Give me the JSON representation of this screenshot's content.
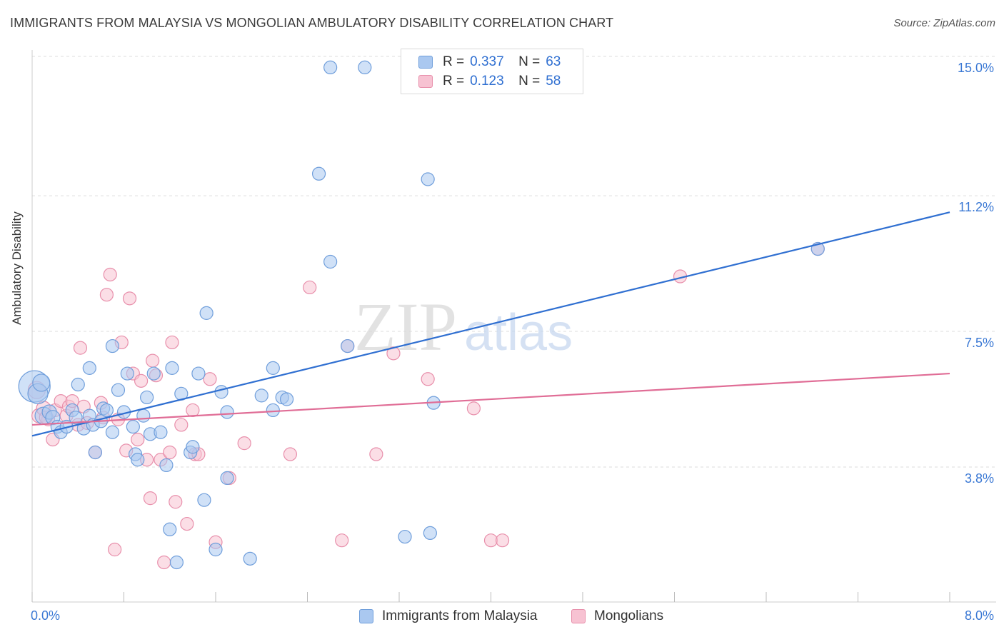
{
  "title": "IMMIGRANTS FROM MALAYSIA VS MONGOLIAN AMBULATORY DISABILITY CORRELATION CHART",
  "source": "Source: ZipAtlas.com",
  "watermark": {
    "part1": "ZIP",
    "part2": "atlas"
  },
  "legend_top": {
    "rows": [
      {
        "r_label": "R =",
        "r_value": "0.337",
        "n_label": "N =",
        "n_value": "63"
      },
      {
        "r_label": "R =",
        "r_value": "0.123",
        "n_label": "N =",
        "n_value": "58"
      }
    ]
  },
  "legend_bottom": {
    "items": [
      "Immigrants from Malaysia",
      "Mongolians"
    ]
  },
  "colors": {
    "blue_fill": "#aac8f0",
    "blue_stroke": "#6f9edb",
    "blue_line": "#2f6fd1",
    "pink_fill": "#f7c2d2",
    "pink_stroke": "#e88fab",
    "pink_line": "#e06d96",
    "tick_text": "#3a78d4",
    "grid": "#dddddd"
  },
  "chart_data": {
    "type": "scatter",
    "title": "IMMIGRANTS FROM MALAYSIA VS MONGOLIAN AMBULATORY DISABILITY CORRELATION CHART",
    "xlabel": "",
    "ylabel": "Ambulatory Disability",
    "xlim": [
      0,
      8.0
    ],
    "ylim": [
      0,
      15.5
    ],
    "x_tick_labels": [
      "0.0%",
      "8.0%"
    ],
    "x_tick_values": [
      0,
      8.0
    ],
    "y_tick_labels": [
      "3.8%",
      "7.5%",
      "11.2%",
      "15.0%"
    ],
    "y_tick_values": [
      3.8,
      7.5,
      11.2,
      15.0
    ],
    "series": [
      {
        "name": "Immigrants from Malaysia",
        "color": "blue",
        "R": 0.337,
        "N": 63,
        "trend": {
          "x": [
            0,
            8.0
          ],
          "y": [
            4.65,
            10.75
          ]
        },
        "points": [
          [
            0.02,
            6.0,
            22
          ],
          [
            0.05,
            5.8,
            14
          ],
          [
            0.08,
            6.1,
            12
          ],
          [
            0.1,
            5.2,
            12
          ],
          [
            0.15,
            5.3,
            10
          ],
          [
            0.18,
            5.15,
            10
          ],
          [
            0.22,
            4.9,
            9
          ],
          [
            0.25,
            4.75,
            9
          ],
          [
            0.3,
            4.9,
            9
          ],
          [
            0.35,
            5.35,
            9
          ],
          [
            0.38,
            5.15,
            9
          ],
          [
            0.4,
            6.05,
            9
          ],
          [
            0.45,
            4.85,
            9
          ],
          [
            0.5,
            5.2,
            9
          ],
          [
            0.5,
            6.5,
            9
          ],
          [
            0.53,
            4.95,
            9
          ],
          [
            0.55,
            4.2,
            9
          ],
          [
            0.6,
            5.05,
            9
          ],
          [
            0.62,
            5.4,
            9
          ],
          [
            0.65,
            5.35,
            9
          ],
          [
            0.7,
            4.75,
            9
          ],
          [
            0.7,
            7.1,
            9
          ],
          [
            0.75,
            5.9,
            9
          ],
          [
            0.8,
            5.3,
            9
          ],
          [
            0.83,
            6.35,
            9
          ],
          [
            0.88,
            4.9,
            9
          ],
          [
            0.9,
            4.15,
            9
          ],
          [
            0.92,
            4.0,
            9
          ],
          [
            0.97,
            5.2,
            9
          ],
          [
            1.0,
            5.7,
            9
          ],
          [
            1.03,
            4.7,
            9
          ],
          [
            1.06,
            6.35,
            9
          ],
          [
            1.12,
            4.75,
            9
          ],
          [
            1.17,
            3.85,
            9
          ],
          [
            1.2,
            2.1,
            9
          ],
          [
            1.22,
            6.5,
            9
          ],
          [
            1.26,
            1.2,
            9
          ],
          [
            1.3,
            5.8,
            9
          ],
          [
            1.38,
            4.2,
            9
          ],
          [
            1.4,
            4.35,
            9
          ],
          [
            1.45,
            6.35,
            9
          ],
          [
            1.5,
            2.9,
            9
          ],
          [
            1.52,
            8.0,
            9
          ],
          [
            1.6,
            1.55,
            9
          ],
          [
            1.65,
            5.85,
            9
          ],
          [
            1.7,
            5.3,
            9
          ],
          [
            1.7,
            3.5,
            9
          ],
          [
            1.9,
            1.3,
            9
          ],
          [
            2.0,
            5.75,
            9
          ],
          [
            2.1,
            6.5,
            9
          ],
          [
            2.1,
            5.35,
            9
          ],
          [
            2.18,
            5.7,
            9
          ],
          [
            2.22,
            5.65,
            9
          ],
          [
            2.5,
            11.8,
            9
          ],
          [
            2.6,
            14.7,
            9
          ],
          [
            2.6,
            9.4,
            9
          ],
          [
            2.75,
            7.1,
            9
          ],
          [
            2.9,
            14.7,
            9
          ],
          [
            3.25,
            1.9,
            9
          ],
          [
            3.45,
            11.65,
            9
          ],
          [
            3.47,
            2.0,
            9
          ],
          [
            3.5,
            5.55,
            9
          ],
          [
            6.85,
            9.75,
            9
          ]
        ]
      },
      {
        "name": "Mongolians",
        "color": "pink",
        "R": 0.123,
        "N": 58,
        "trend": {
          "x": [
            0,
            8.0
          ],
          "y": [
            4.95,
            6.35
          ]
        },
        "points": [
          [
            0.04,
            5.9,
            12
          ],
          [
            0.06,
            5.2,
            10
          ],
          [
            0.1,
            5.4,
            10
          ],
          [
            0.14,
            5.1,
            9
          ],
          [
            0.18,
            4.55,
            9
          ],
          [
            0.2,
            5.35,
            9
          ],
          [
            0.25,
            5.6,
            9
          ],
          [
            0.3,
            5.2,
            9
          ],
          [
            0.32,
            5.45,
            9
          ],
          [
            0.35,
            5.6,
            9
          ],
          [
            0.4,
            4.95,
            9
          ],
          [
            0.42,
            7.05,
            9
          ],
          [
            0.45,
            5.45,
            9
          ],
          [
            0.48,
            5.0,
            9
          ],
          [
            0.55,
            4.2,
            9
          ],
          [
            0.6,
            5.55,
            9
          ],
          [
            0.62,
            5.15,
            9
          ],
          [
            0.65,
            8.5,
            9
          ],
          [
            0.68,
            9.05,
            9
          ],
          [
            0.72,
            1.55,
            9
          ],
          [
            0.75,
            5.1,
            9
          ],
          [
            0.78,
            7.2,
            9
          ],
          [
            0.82,
            4.25,
            9
          ],
          [
            0.85,
            8.4,
            9
          ],
          [
            0.88,
            6.35,
            9
          ],
          [
            0.92,
            4.55,
            9
          ],
          [
            0.95,
            6.15,
            9
          ],
          [
            1.0,
            4.0,
            9
          ],
          [
            1.03,
            2.95,
            9
          ],
          [
            1.05,
            6.7,
            9
          ],
          [
            1.08,
            6.3,
            9
          ],
          [
            1.12,
            4.0,
            9
          ],
          [
            1.15,
            1.2,
            9
          ],
          [
            1.2,
            4.2,
            9
          ],
          [
            1.22,
            7.2,
            9
          ],
          [
            1.25,
            2.85,
            9
          ],
          [
            1.3,
            4.95,
            9
          ],
          [
            1.35,
            2.25,
            9
          ],
          [
            1.4,
            5.35,
            9
          ],
          [
            1.42,
            4.15,
            9
          ],
          [
            1.45,
            4.15,
            9
          ],
          [
            1.55,
            6.2,
            9
          ],
          [
            1.6,
            1.75,
            9
          ],
          [
            1.72,
            3.5,
            9
          ],
          [
            1.85,
            4.45,
            9
          ],
          [
            2.25,
            4.15,
            9
          ],
          [
            2.42,
            8.7,
            9
          ],
          [
            2.7,
            1.8,
            9
          ],
          [
            2.75,
            7.1,
            9
          ],
          [
            3.0,
            4.15,
            9
          ],
          [
            3.15,
            6.9,
            9
          ],
          [
            3.45,
            6.2,
            9
          ],
          [
            3.85,
            5.4,
            9
          ],
          [
            4.0,
            1.8,
            9
          ],
          [
            4.1,
            1.8,
            9
          ],
          [
            5.65,
            9.0,
            9
          ],
          [
            6.85,
            9.75,
            9
          ],
          [
            0.12,
            5.15,
            9
          ]
        ]
      }
    ]
  }
}
